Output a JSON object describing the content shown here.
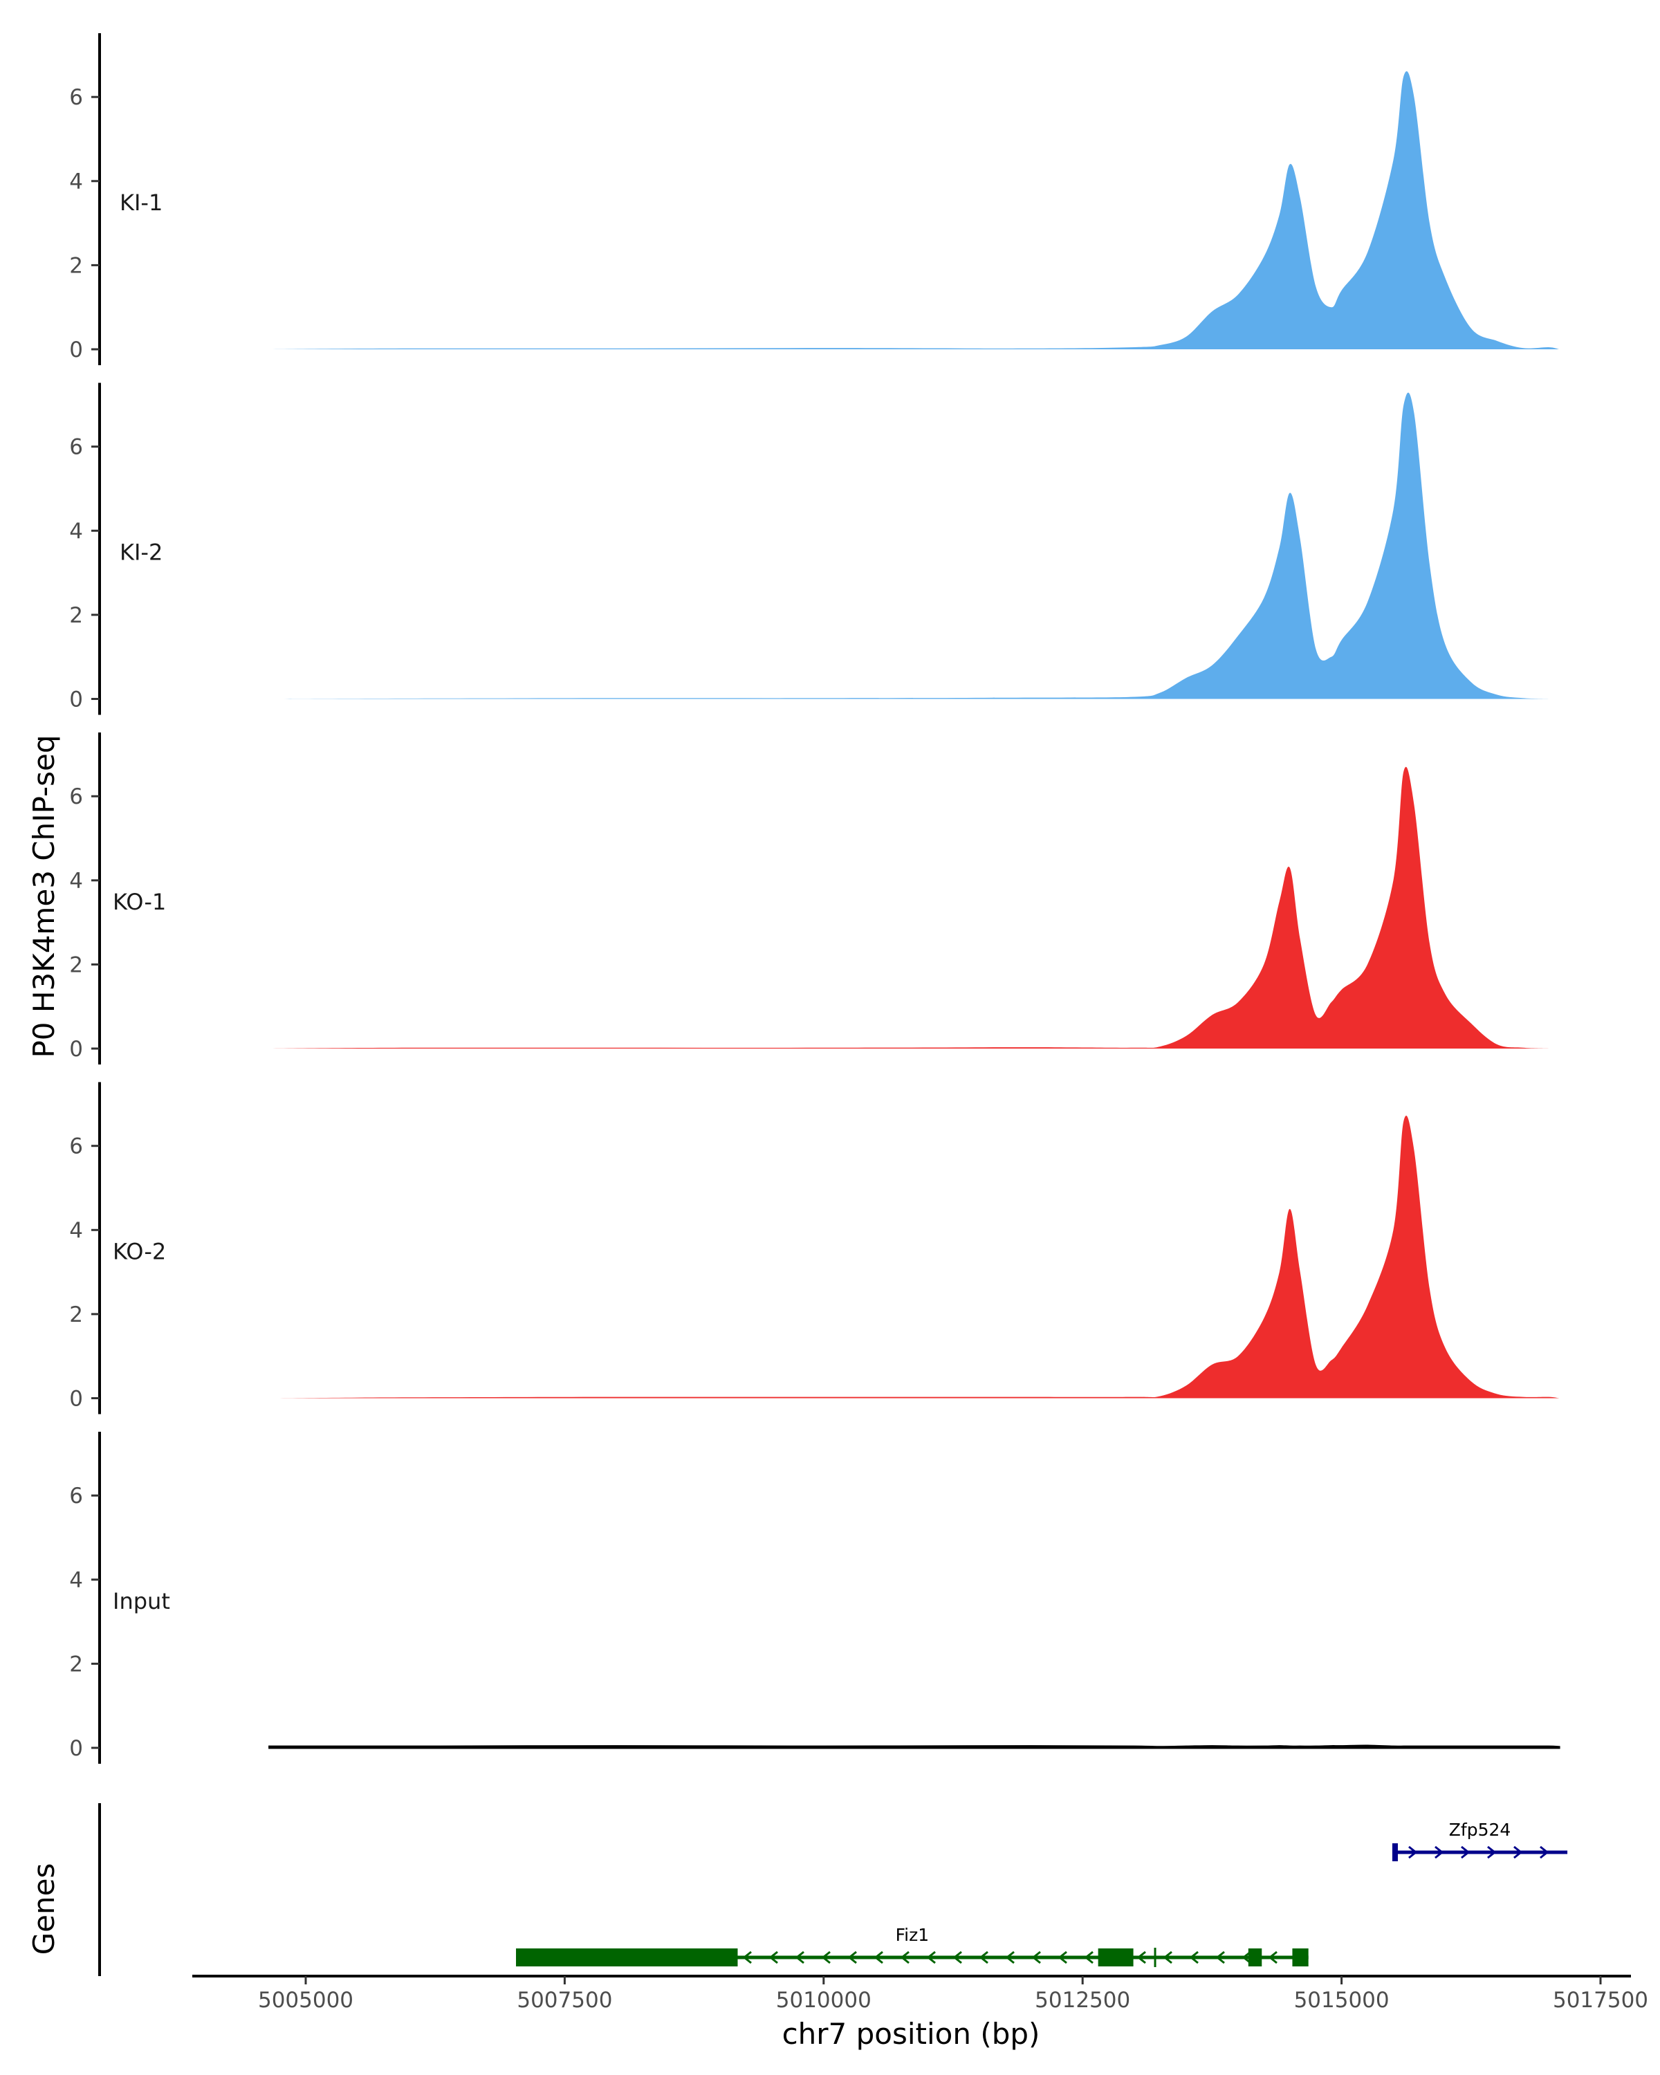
{
  "chart_data": {
    "type": "area",
    "ylabel": "P0 H3K4me3 ChIP-seq",
    "xlabel": "chr7 position (bp)",
    "genes_label": "Genes",
    "ylim": [
      0,
      7.5
    ],
    "yticks": [
      "0",
      "2",
      "4",
      "6"
    ],
    "xlim": [
      5004000,
      5017800
    ],
    "xticks": [
      "5005000",
      "5007500",
      "5010000",
      "5012500",
      "5015000",
      "5017500"
    ],
    "x": [
      5004650,
      5006000,
      5008000,
      5010000,
      5012000,
      5013000,
      5013250,
      5013500,
      5013750,
      5014000,
      5014250,
      5014400,
      5014500,
      5014600,
      5014750,
      5014900,
      5015000,
      5015250,
      5015500,
      5015600,
      5015700,
      5015850,
      5016000,
      5016250,
      5016500,
      5016750,
      5017000,
      5017100
    ],
    "series": [
      {
        "name": "KI-1",
        "color": "#5eadec",
        "values": [
          0,
          0.02,
          0.02,
          0.03,
          0.02,
          0.05,
          0.1,
          0.3,
          0.9,
          1.3,
          2.2,
          3.2,
          4.4,
          3.6,
          1.5,
          1.0,
          1.4,
          2.3,
          4.5,
          6.5,
          6.0,
          3.0,
          1.7,
          0.5,
          0.2,
          0.03,
          0.05,
          0
        ]
      },
      {
        "name": "KI-2",
        "color": "#5eadec",
        "values": [
          0,
          0.01,
          0.02,
          0.02,
          0.03,
          0.05,
          0.15,
          0.5,
          0.8,
          1.5,
          2.4,
          3.6,
          4.9,
          3.8,
          1.2,
          1.0,
          1.4,
          2.3,
          4.5,
          7.0,
          6.8,
          3.2,
          1.3,
          0.4,
          0.1,
          0.02,
          0,
          0
        ]
      },
      {
        "name": "KO-1",
        "color": "#ee2d2d",
        "values": [
          0,
          0.02,
          0.02,
          0.02,
          0.03,
          0.02,
          0.05,
          0.3,
          0.8,
          1.1,
          2.0,
          3.5,
          4.3,
          2.6,
          0.8,
          1.1,
          1.4,
          2.0,
          4.0,
          6.6,
          5.8,
          2.5,
          1.3,
          0.6,
          0.1,
          0.02,
          0,
          0
        ]
      },
      {
        "name": "KO-2",
        "color": "#ee2d2d",
        "values": [
          0,
          0.02,
          0.03,
          0.03,
          0.03,
          0.03,
          0.05,
          0.3,
          0.8,
          1.0,
          1.9,
          3.0,
          4.5,
          3.0,
          0.8,
          0.9,
          1.2,
          2.2,
          4.0,
          6.6,
          5.9,
          2.6,
          1.2,
          0.4,
          0.1,
          0.03,
          0.03,
          0
        ]
      },
      {
        "name": "Input",
        "color": "#000000",
        "values": [
          0.03,
          0.03,
          0.04,
          0.03,
          0.04,
          0.03,
          0.02,
          0.03,
          0.04,
          0.03,
          0.03,
          0.04,
          0.03,
          0.03,
          0.03,
          0.04,
          0.04,
          0.05,
          0.03,
          0.03,
          0.03,
          0.03,
          0.03,
          0.03,
          0.03,
          0.03,
          0.03,
          0.02
        ]
      }
    ],
    "genes": [
      {
        "name": "Zfp524",
        "strand": "+",
        "color": "#00008b",
        "start": 5015490,
        "end": 5017180,
        "thick": [],
        "exons": [
          [
            5015490,
            5015530
          ]
        ]
      },
      {
        "name": "Fiz1",
        "strand": "-",
        "color": "#006400",
        "start": 5007030,
        "end": 5014680,
        "thick": [
          [
            5007030,
            5009170
          ]
        ],
        "exons": [
          [
            5012650,
            5012990
          ],
          [
            5014100,
            5014230
          ],
          [
            5014525,
            5014680
          ]
        ]
      }
    ]
  }
}
